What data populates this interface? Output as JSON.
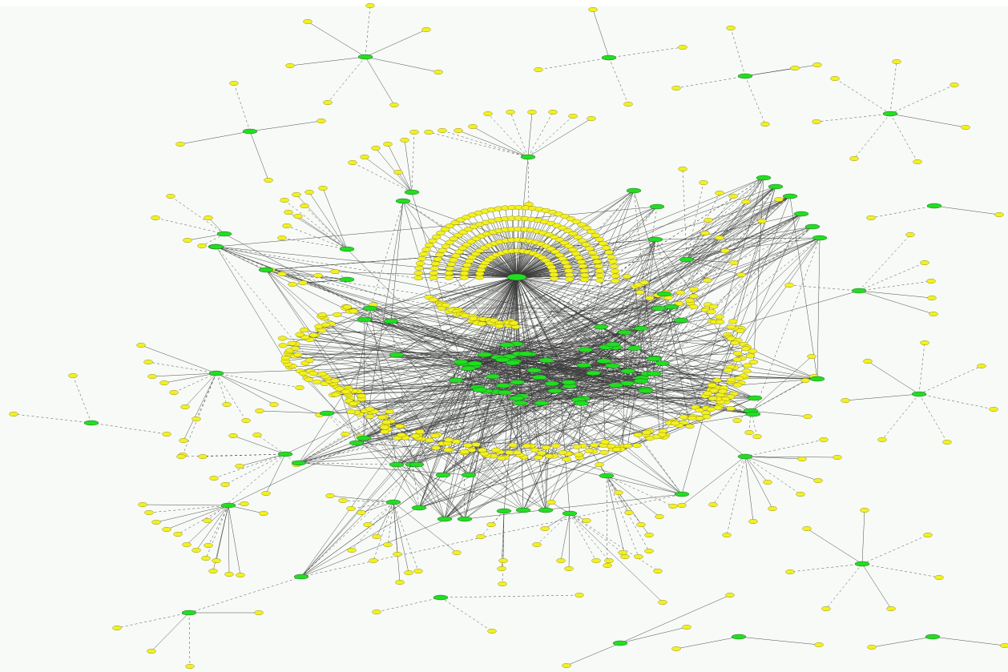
{
  "diagram": {
    "type": "network-graph",
    "colors": {
      "background": "#f7faf6",
      "hub_node": "#22dd22",
      "leaf_node": "#f2f020",
      "edge": "#3a3a3a"
    }
  }
}
